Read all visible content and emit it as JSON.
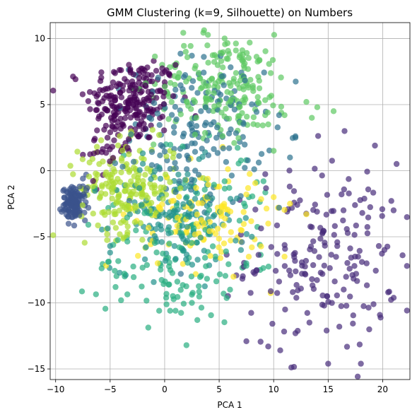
{
  "chart_data": {
    "type": "scatter",
    "title": "GMM Clustering (k=9, Silhouette) on Numbers",
    "xlabel": "PCA 1",
    "ylabel": "PCA 2",
    "xlim": [
      -10.5,
      22.5
    ],
    "ylim": [
      -15.8,
      11.2
    ],
    "xticks": [
      -10,
      -5,
      0,
      5,
      10,
      15,
      20
    ],
    "yticks": [
      -15,
      -10,
      -5,
      0,
      5,
      10
    ],
    "grid": true,
    "legend": "none",
    "marker_alpha": 0.7,
    "series": [
      {
        "color": "#440154",
        "clusters": [
          {
            "cx": -3.0,
            "cy": 5.3,
            "sx": 2.1,
            "sy": 1.6,
            "n": 210
          },
          {
            "cx": -5.0,
            "cy": 2.0,
            "sx": 1.0,
            "sy": 1.2,
            "n": 30
          }
        ],
        "points": [
          [
            -6.5,
            1.3
          ],
          [
            -7.5,
            1.2
          ],
          [
            -4.0,
            7.6
          ],
          [
            0.5,
            7.2
          ],
          [
            -1.0,
            8.3
          ],
          [
            1.0,
            8.0
          ]
        ]
      },
      {
        "color": "#472c7a",
        "clusters": [
          {
            "cx": 14.5,
            "cy": -6.5,
            "sx": 3.5,
            "sy": 3.6,
            "n": 190
          }
        ],
        "points": [
          [
            15.0,
            -14.6
          ],
          [
            18.0,
            -14.6
          ],
          [
            9.5,
            -13.3
          ],
          [
            7.5,
            -12.9
          ],
          [
            16.5,
            3.0
          ],
          [
            21.0,
            -3.0
          ],
          [
            20.5,
            -9.2
          ],
          [
            12.0,
            -12.3
          ]
        ]
      },
      {
        "color": "#3b528b",
        "clusters": [
          {
            "cx": -8.3,
            "cy": -2.5,
            "sx": 0.55,
            "sy": 0.6,
            "n": 110
          }
        ],
        "points": [
          [
            -7.8,
            -1.2
          ],
          [
            -7.5,
            -0.6
          ],
          [
            -7.2,
            -0.3
          ],
          [
            -7.2,
            -1.5
          ],
          [
            -7.6,
            -2.1
          ],
          [
            -7.0,
            -2.8
          ]
        ]
      },
      {
        "color": "#2c728e",
        "clusters": [
          {
            "cx": 3.0,
            "cy": 3.0,
            "sx": 3.0,
            "sy": 2.8,
            "n": 170
          }
        ],
        "points": [
          [
            10.5,
            -2.8
          ],
          [
            11.5,
            1.0
          ],
          [
            10.5,
            4.2
          ],
          [
            12.0,
            2.5
          ],
          [
            2.5,
            8.7
          ]
        ]
      },
      {
        "color": "#21918c",
        "clusters": [
          {
            "cx": 1.0,
            "cy": -3.5,
            "sx": 2.9,
            "sy": 2.0,
            "n": 150
          }
        ],
        "points": [
          [
            -5.0,
            -5.7
          ],
          [
            -5.0,
            -6.2
          ],
          [
            7.0,
            -6.0
          ],
          [
            8.0,
            -5.0
          ]
        ]
      },
      {
        "color": "#28ae80",
        "clusters": [
          {
            "cx": 1.0,
            "cy": -7.0,
            "sx": 3.5,
            "sy": 2.2,
            "n": 110
          },
          {
            "cx": 4.5,
            "cy": -2.0,
            "sx": 3.5,
            "sy": 2.8,
            "n": 40
          }
        ],
        "points": [
          [
            2.0,
            -13.2
          ],
          [
            1.0,
            -10.6
          ],
          [
            0.5,
            -10.6
          ],
          [
            -0.5,
            -10.6
          ],
          [
            3.0,
            -11.3
          ],
          [
            2.5,
            -10.0
          ],
          [
            -4.0,
            -9.8
          ],
          [
            -4.5,
            -8.8
          ],
          [
            6.0,
            -9.0
          ],
          [
            7.5,
            -7.2
          ]
        ]
      },
      {
        "color": "#5ec962",
        "clusters": [
          {
            "cx": 5.5,
            "cy": 6.5,
            "sx": 3.2,
            "sy": 1.9,
            "n": 200
          }
        ],
        "points": [
          [
            5.5,
            10.0
          ],
          [
            13.0,
            5.2
          ],
          [
            14.0,
            4.8
          ],
          [
            15.5,
            4.5
          ],
          [
            13.5,
            4.0
          ],
          [
            11.0,
            4.2
          ],
          [
            10.0,
            1.5
          ],
          [
            9.5,
            3.5
          ]
        ]
      },
      {
        "color": "#addc30",
        "clusters": [
          {
            "cx": -3.5,
            "cy": -1.3,
            "sx": 2.2,
            "sy": 1.7,
            "n": 200
          }
        ],
        "points": [
          [
            -6.0,
            0.5
          ],
          [
            -6.5,
            -1.5
          ],
          [
            -0.5,
            2.7
          ],
          [
            0.5,
            1.5
          ]
        ]
      },
      {
        "color": "#fde725",
        "clusters": [
          {
            "cx": 3.5,
            "cy": -3.5,
            "sx": 3.0,
            "sy": 2.0,
            "n": 120
          }
        ],
        "points": [
          [
            13.0,
            -3.3
          ],
          [
            11.0,
            -6.5
          ],
          [
            9.5,
            -4.0
          ],
          [
            10.0,
            -2.0
          ],
          [
            11.5,
            -2.5
          ],
          [
            7.5,
            -1.8
          ]
        ]
      }
    ]
  }
}
